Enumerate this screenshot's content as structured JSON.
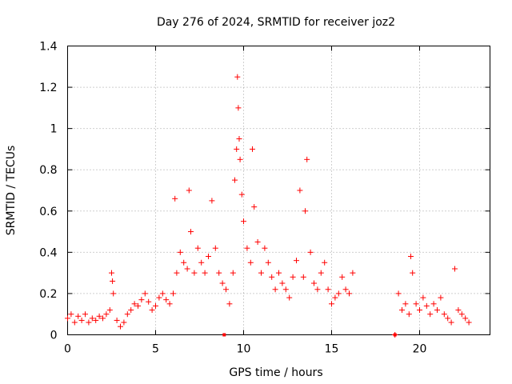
{
  "chart_data": {
    "type": "scatter",
    "title": "Day 276 of 2024, SRMTID for receiver joz2",
    "xlabel": "GPS time / hours",
    "ylabel": "SRMTID / TECUs",
    "xlim": [
      0,
      24
    ],
    "ylim": [
      0,
      1.4
    ],
    "x_ticks": [
      "0",
      "5",
      "10",
      "15",
      "20"
    ],
    "y_ticks": [
      "0",
      "0.2",
      "0.4",
      "0.6",
      "0.8",
      "1",
      "1.2",
      "1.4"
    ],
    "grid": true,
    "marker": "+",
    "color": "#ff0000",
    "series": [
      {
        "name": "SRMTID",
        "x": [
          0.0,
          0.2,
          0.4,
          0.6,
          0.8,
          1.0,
          1.2,
          1.4,
          1.6,
          1.8,
          2.0,
          2.2,
          2.4,
          2.5,
          2.55,
          2.6,
          2.8,
          3.0,
          3.2,
          3.4,
          3.6,
          3.8,
          4.0,
          4.2,
          4.4,
          4.6,
          4.8,
          5.0,
          5.2,
          5.4,
          5.6,
          5.8,
          6.0,
          6.1,
          6.2,
          6.4,
          6.6,
          6.8,
          6.9,
          7.0,
          7.2,
          7.4,
          7.6,
          7.8,
          8.0,
          8.2,
          8.4,
          8.6,
          8.8,
          9.0,
          9.2,
          9.4,
          9.5,
          9.6,
          9.65,
          9.7,
          9.75,
          9.8,
          9.9,
          10.0,
          10.2,
          10.4,
          10.5,
          10.6,
          10.8,
          11.0,
          11.2,
          11.4,
          11.6,
          11.8,
          12.0,
          12.2,
          12.4,
          12.6,
          12.8,
          13.0,
          13.2,
          13.4,
          13.5,
          13.6,
          13.8,
          14.0,
          14.2,
          14.4,
          14.6,
          14.8,
          15.0,
          15.2,
          15.4,
          15.6,
          15.8,
          16.0,
          16.2,
          18.6,
          18.8,
          19.0,
          19.2,
          19.4,
          19.5,
          19.6,
          19.8,
          20.0,
          20.2,
          20.4,
          20.6,
          20.8,
          21.0,
          21.2,
          21.4,
          21.6,
          21.8,
          22.0,
          22.2,
          22.4,
          22.6,
          22.8
        ],
        "y": [
          0.08,
          0.1,
          0.06,
          0.09,
          0.07,
          0.1,
          0.06,
          0.08,
          0.07,
          0.09,
          0.08,
          0.1,
          0.12,
          0.3,
          0.26,
          0.2,
          0.07,
          0.04,
          0.06,
          0.1,
          0.12,
          0.15,
          0.14,
          0.17,
          0.2,
          0.16,
          0.12,
          0.14,
          0.18,
          0.2,
          0.17,
          0.15,
          0.2,
          0.66,
          0.3,
          0.4,
          0.35,
          0.32,
          0.7,
          0.5,
          0.3,
          0.42,
          0.35,
          0.3,
          0.38,
          0.65,
          0.42,
          0.3,
          0.25,
          0.22,
          0.15,
          0.3,
          0.75,
          0.9,
          1.25,
          1.1,
          0.95,
          0.85,
          0.68,
          0.55,
          0.42,
          0.35,
          0.9,
          0.62,
          0.45,
          0.3,
          0.42,
          0.35,
          0.28,
          0.22,
          0.3,
          0.25,
          0.22,
          0.18,
          0.28,
          0.36,
          0.7,
          0.28,
          0.6,
          0.85,
          0.4,
          0.25,
          0.22,
          0.3,
          0.35,
          0.22,
          0.15,
          0.18,
          0.2,
          0.28,
          0.22,
          0.2,
          0.3,
          0.0,
          0.2,
          0.12,
          0.15,
          0.1,
          0.38,
          0.3,
          0.15,
          0.12,
          0.18,
          0.14,
          0.1,
          0.15,
          0.12,
          0.18,
          0.1,
          0.08,
          0.06,
          0.32,
          0.12,
          0.1,
          0.08,
          0.06
        ]
      }
    ],
    "zero_markers_x": [
      8.9,
      18.6
    ]
  }
}
